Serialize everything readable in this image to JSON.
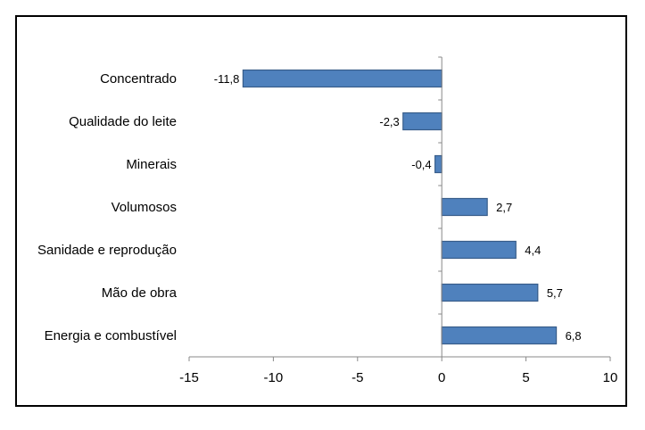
{
  "chart_data": {
    "type": "bar",
    "orientation": "horizontal",
    "categories": [
      "Concentrado",
      "Qualidade do leite",
      "Minerais",
      "Volumosos",
      "Sanidade e reprodução",
      "Mão de obra",
      "Energia e combustível"
    ],
    "values": [
      -11.8,
      -2.3,
      -0.4,
      2.7,
      4.4,
      5.7,
      6.8
    ],
    "data_labels": [
      "-11,8",
      "-2,3",
      "-0,4",
      "2,7",
      "4,4",
      "5,7",
      "6,8"
    ],
    "xlim": [
      -15,
      10
    ],
    "xticks": [
      -15,
      -10,
      -5,
      0,
      5,
      10
    ],
    "xtick_labels": [
      "-15",
      "-10",
      "-5",
      "0",
      "5",
      "10"
    ],
    "title": "",
    "xlabel": "",
    "ylabel": "",
    "grid": false,
    "legend": "none",
    "bar_color": "#4F81BD",
    "bar_edge_color": "#385D8A"
  }
}
